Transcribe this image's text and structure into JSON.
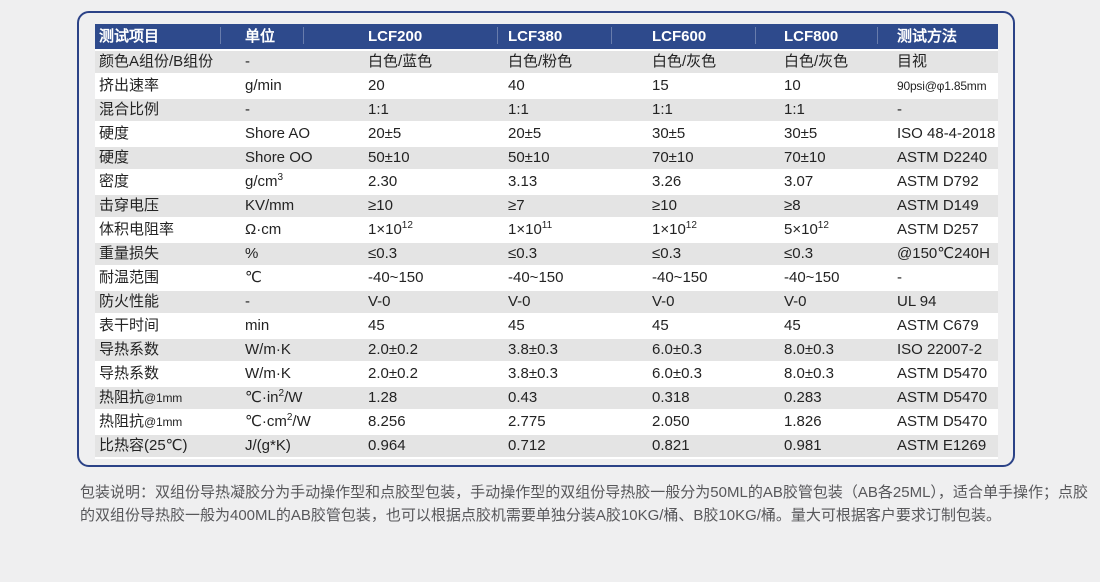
{
  "colors": {
    "accent_navy": "#2e4a8c",
    "card_border": "#2b4287",
    "row_gray": "#e4e4e4",
    "row_white": "#ffffff",
    "page_bg": "#efeff0",
    "text_dark": "#232323",
    "footer_text": "#57575a"
  },
  "table": {
    "headers": [
      "测试项目",
      "单位",
      "LCF200",
      "LCF380",
      "LCF600",
      "LCF800",
      "测试方法"
    ],
    "rows": [
      [
        [
          {
            "t": "颜色A组份/B组份"
          }
        ],
        [
          {
            "t": "-"
          }
        ],
        [
          {
            "t": "白色/蓝色"
          }
        ],
        [
          {
            "t": "白色/粉色"
          }
        ],
        [
          {
            "t": "白色/灰色"
          }
        ],
        [
          {
            "t": "白色/灰色"
          }
        ],
        [
          {
            "t": "目视"
          }
        ]
      ],
      [
        [
          {
            "t": "挤出速率"
          }
        ],
        [
          {
            "t": "g/min"
          }
        ],
        [
          {
            "t": "20"
          }
        ],
        [
          {
            "t": "40"
          }
        ],
        [
          {
            "t": "15"
          }
        ],
        [
          {
            "t": "10"
          }
        ],
        [
          {
            "t": "90psi@φ1.85mm",
            "s": "sm"
          }
        ]
      ],
      [
        [
          {
            "t": "混合比例"
          }
        ],
        [
          {
            "t": "-"
          }
        ],
        [
          {
            "t": "1:1"
          }
        ],
        [
          {
            "t": "1:1"
          }
        ],
        [
          {
            "t": "1:1"
          }
        ],
        [
          {
            "t": "1:1"
          }
        ],
        [
          {
            "t": "-"
          }
        ]
      ],
      [
        [
          {
            "t": "硬度"
          }
        ],
        [
          {
            "t": "Shore AO"
          }
        ],
        [
          {
            "t": "20±5"
          }
        ],
        [
          {
            "t": "20±5"
          }
        ],
        [
          {
            "t": "30±5"
          }
        ],
        [
          {
            "t": "30±5"
          }
        ],
        [
          {
            "t": "ISO 48-4-2018"
          }
        ]
      ],
      [
        [
          {
            "t": "硬度"
          }
        ],
        [
          {
            "t": "Shore OO"
          }
        ],
        [
          {
            "t": "50±10"
          }
        ],
        [
          {
            "t": "50±10"
          }
        ],
        [
          {
            "t": "70±10"
          }
        ],
        [
          {
            "t": "70±10"
          }
        ],
        [
          {
            "t": "ASTM D2240"
          }
        ]
      ],
      [
        [
          {
            "t": "密度"
          }
        ],
        [
          {
            "t": "g/cm"
          },
          {
            "t": "3",
            "s": "sup"
          }
        ],
        [
          {
            "t": "2.30"
          }
        ],
        [
          {
            "t": "3.13"
          }
        ],
        [
          {
            "t": "3.26"
          }
        ],
        [
          {
            "t": "3.07"
          }
        ],
        [
          {
            "t": "ASTM D792"
          }
        ]
      ],
      [
        [
          {
            "t": "击穿电压"
          }
        ],
        [
          {
            "t": "KV/mm"
          }
        ],
        [
          {
            "t": "≥10"
          }
        ],
        [
          {
            "t": "≥7"
          }
        ],
        [
          {
            "t": "≥10"
          }
        ],
        [
          {
            "t": "≥8"
          }
        ],
        [
          {
            "t": "ASTM D149"
          }
        ]
      ],
      [
        [
          {
            "t": "体积电阻率"
          }
        ],
        [
          {
            "t": "Ω·cm"
          }
        ],
        [
          {
            "t": "1×10"
          },
          {
            "t": "12",
            "s": "sup"
          }
        ],
        [
          {
            "t": "1×10"
          },
          {
            "t": "11",
            "s": "sup"
          }
        ],
        [
          {
            "t": "1×10"
          },
          {
            "t": "12",
            "s": "sup"
          }
        ],
        [
          {
            "t": "5×10"
          },
          {
            "t": "12",
            "s": "sup"
          }
        ],
        [
          {
            "t": "ASTM D257"
          }
        ]
      ],
      [
        [
          {
            "t": "重量损失"
          }
        ],
        [
          {
            "t": "%"
          }
        ],
        [
          {
            "t": "≤0.3"
          }
        ],
        [
          {
            "t": "≤0.3"
          }
        ],
        [
          {
            "t": "≤0.3"
          }
        ],
        [
          {
            "t": "≤0.3"
          }
        ],
        [
          {
            "t": "@150℃240H"
          }
        ]
      ],
      [
        [
          {
            "t": "耐温范围"
          }
        ],
        [
          {
            "t": "℃"
          }
        ],
        [
          {
            "t": "-40~150"
          }
        ],
        [
          {
            "t": "-40~150"
          }
        ],
        [
          {
            "t": "-40~150"
          }
        ],
        [
          {
            "t": "-40~150"
          }
        ],
        [
          {
            "t": "-"
          }
        ]
      ],
      [
        [
          {
            "t": "防火性能"
          }
        ],
        [
          {
            "t": "-"
          }
        ],
        [
          {
            "t": "V-0"
          }
        ],
        [
          {
            "t": "V-0"
          }
        ],
        [
          {
            "t": "V-0"
          }
        ],
        [
          {
            "t": "V-0"
          }
        ],
        [
          {
            "t": "UL 94"
          }
        ]
      ],
      [
        [
          {
            "t": "表干时间"
          }
        ],
        [
          {
            "t": "min"
          }
        ],
        [
          {
            "t": "45"
          }
        ],
        [
          {
            "t": "45"
          }
        ],
        [
          {
            "t": "45"
          }
        ],
        [
          {
            "t": "45"
          }
        ],
        [
          {
            "t": "ASTM C679"
          }
        ]
      ],
      [
        [
          {
            "t": "导热系数"
          }
        ],
        [
          {
            "t": "W/m·K"
          }
        ],
        [
          {
            "t": "2.0±0.2"
          }
        ],
        [
          {
            "t": "3.8±0.3"
          }
        ],
        [
          {
            "t": "6.0±0.3"
          }
        ],
        [
          {
            "t": "8.0±0.3"
          }
        ],
        [
          {
            "t": "ISO 22007-2"
          }
        ]
      ],
      [
        [
          {
            "t": "导热系数"
          }
        ],
        [
          {
            "t": "W/m·K"
          }
        ],
        [
          {
            "t": "2.0±0.2"
          }
        ],
        [
          {
            "t": "3.8±0.3"
          }
        ],
        [
          {
            "t": "6.0±0.3"
          }
        ],
        [
          {
            "t": "8.0±0.3"
          }
        ],
        [
          {
            "t": "ASTM D5470"
          }
        ]
      ],
      [
        [
          {
            "t": "热阻抗"
          },
          {
            "t": "@1mm",
            "s": "sm"
          }
        ],
        [
          {
            "t": "℃·in"
          },
          {
            "t": "2",
            "s": "sup"
          },
          {
            "t": "/W"
          }
        ],
        [
          {
            "t": "1.28"
          }
        ],
        [
          {
            "t": "0.43"
          }
        ],
        [
          {
            "t": "0.318"
          }
        ],
        [
          {
            "t": "0.283"
          }
        ],
        [
          {
            "t": "ASTM D5470"
          }
        ]
      ],
      [
        [
          {
            "t": "热阻抗"
          },
          {
            "t": "@1mm",
            "s": "sm"
          }
        ],
        [
          {
            "t": "℃·cm"
          },
          {
            "t": "2",
            "s": "sup"
          },
          {
            "t": "/W"
          }
        ],
        [
          {
            "t": "8.256"
          }
        ],
        [
          {
            "t": "2.775"
          }
        ],
        [
          {
            "t": "2.050"
          }
        ],
        [
          {
            "t": "1.826"
          }
        ],
        [
          {
            "t": "ASTM D5470"
          }
        ]
      ],
      [
        [
          {
            "t": "比热容(25℃)"
          }
        ],
        [
          {
            "t": "J/(g*K)"
          }
        ],
        [
          {
            "t": "0.964"
          }
        ],
        [
          {
            "t": "0.712"
          }
        ],
        [
          {
            "t": "0.821"
          }
        ],
        [
          {
            "t": "0.981"
          }
        ],
        [
          {
            "t": "ASTM E1269"
          }
        ]
      ]
    ]
  },
  "footer": {
    "text": "包装说明：双组份导热凝胶分为手动操作型和点胶型包装，手动操作型的双组份导热胶一般分为50ML的AB胶管包装（AB各25ML），适合单手操作；点胶的双组份导热胶一般为400ML的AB胶管包装，也可以根据点胶机需要单独分装A胶10KG/桶、B胶10KG/桶。量大可根据客户要求订制包装。"
  }
}
